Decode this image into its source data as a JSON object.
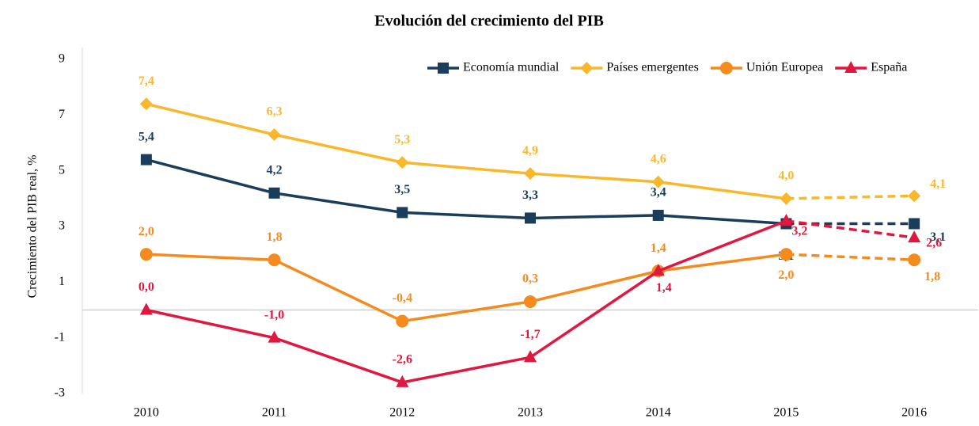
{
  "chart_data": {
    "type": "line",
    "title": "Evolución del crecimiento del PIB",
    "y_label": "Crecimiento del PIB real, %",
    "categories": [
      "2010",
      "2011",
      "2012",
      "2013",
      "2014",
      "2015",
      "2016"
    ],
    "dashed_after": "2015",
    "ylim": [
      -3,
      9
    ],
    "yticks": [
      -3,
      -1,
      1,
      3,
      5,
      7,
      9
    ],
    "legend": "top-right",
    "series": [
      {
        "name": "Economía mundial",
        "color": "#1b3d5c",
        "marker": "square",
        "values": [
          5.4,
          4.2,
          3.5,
          3.3,
          3.4,
          3.1,
          3.1
        ],
        "value_labels": [
          "5,4",
          "4,2",
          "3,5",
          "3,3",
          "3,4",
          "3,1",
          "3,1"
        ]
      },
      {
        "name": "Países emergentes",
        "color": "#f9b82c",
        "marker": "diamond",
        "values": [
          7.4,
          6.3,
          5.3,
          4.9,
          4.6,
          4.0,
          4.1
        ],
        "value_labels": [
          "7,4",
          "6,3",
          "5,3",
          "4,9",
          "4,6",
          "4,0",
          "4,1"
        ]
      },
      {
        "name": "Unión Europea",
        "color": "#f58a1f",
        "marker": "circle",
        "values": [
          2.0,
          1.8,
          -0.4,
          0.3,
          1.4,
          2.0,
          1.8
        ],
        "value_labels": [
          "2,0",
          "1,8",
          "-0,4",
          "0,3",
          "1,4",
          "2,0",
          "1,8"
        ]
      },
      {
        "name": "España",
        "color": "#e0173f",
        "marker": "triangle",
        "values": [
          0.0,
          -1.0,
          -2.6,
          -1.7,
          1.4,
          3.2,
          2.6
        ],
        "value_labels": [
          "0,0",
          "-1,0",
          "-2,6",
          "-1,7",
          "1,4",
          "3,2",
          "2,6"
        ]
      }
    ]
  }
}
